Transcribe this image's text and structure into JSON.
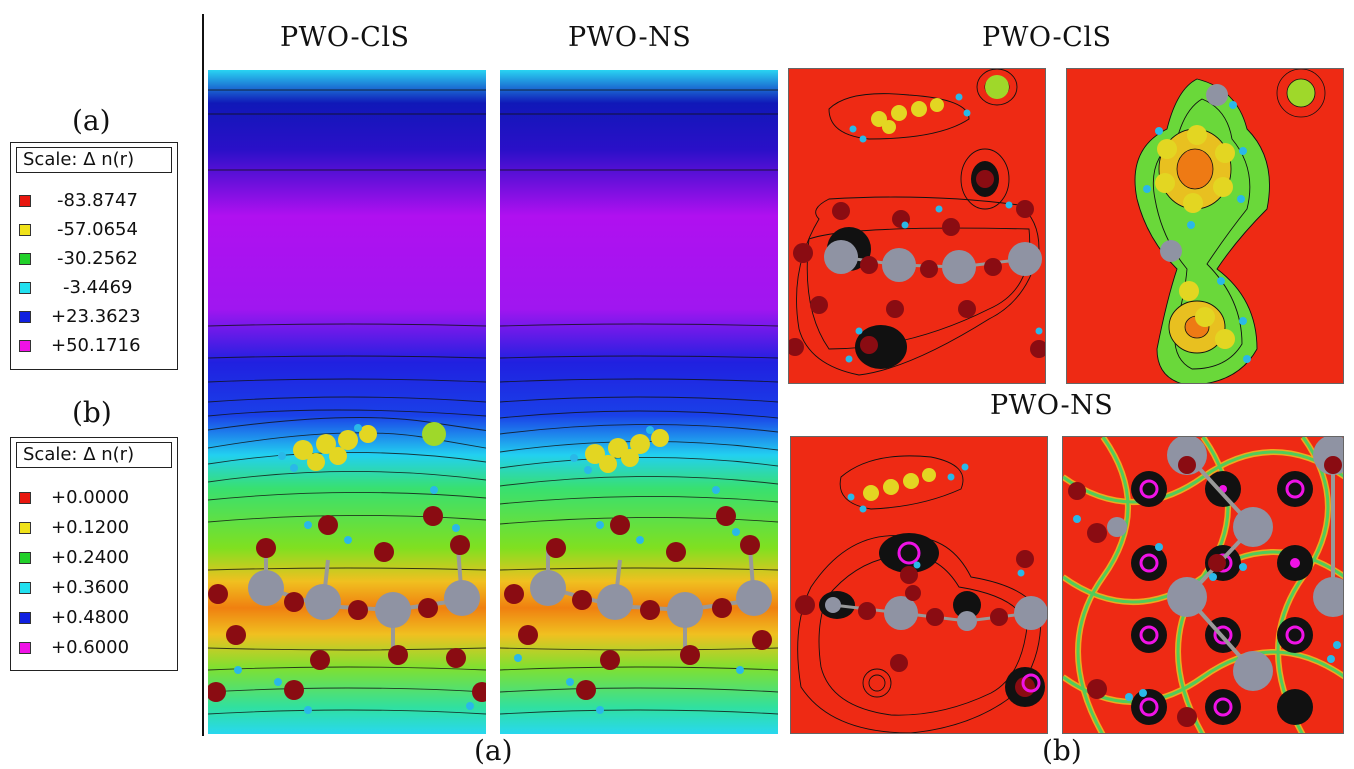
{
  "labels": {
    "left_a": "(a)",
    "left_b": "(b)",
    "bottom_a": "(a)",
    "bottom_b": "(b)"
  },
  "headings": {
    "a_left": "PWO-ClS",
    "a_right": "PWO-NS",
    "b_top": "PWO-ClS",
    "b_bottom": "PWO-NS"
  },
  "legend_a": {
    "title": "Scale:   Δ n(r)",
    "items": [
      {
        "value": "-83.8747",
        "color": "#e8170f"
      },
      {
        "value": "-57.0654",
        "color": "#f0e21a"
      },
      {
        "value": "-30.2562",
        "color": "#22d02a"
      },
      {
        "value": "-3.4469",
        "color": "#22e0f0"
      },
      {
        "value": "+23.3623",
        "color": "#1020e0"
      },
      {
        "value": "+50.1716",
        "color": "#f012e6"
      }
    ]
  },
  "legend_b": {
    "title": "Scale:   Δ n(r)",
    "items": [
      {
        "value": "+0.0000",
        "color": "#e8170f"
      },
      {
        "value": "+0.1200",
        "color": "#f0e21a"
      },
      {
        "value": "+0.2400",
        "color": "#22d02a"
      },
      {
        "value": "+0.3600",
        "color": "#22e0f0"
      },
      {
        "value": "+0.4800",
        "color": "#1020e0"
      },
      {
        "value": "+0.6000",
        "color": "#f012e6"
      }
    ]
  },
  "colors": {
    "oxygen": "#8a0c12",
    "tungsten": "#8f93a3",
    "carbon": "#e3d622",
    "hydrogen": "#2ab8e8",
    "chlorine": "#9fd82a",
    "field_red": "#ee2a14"
  }
}
